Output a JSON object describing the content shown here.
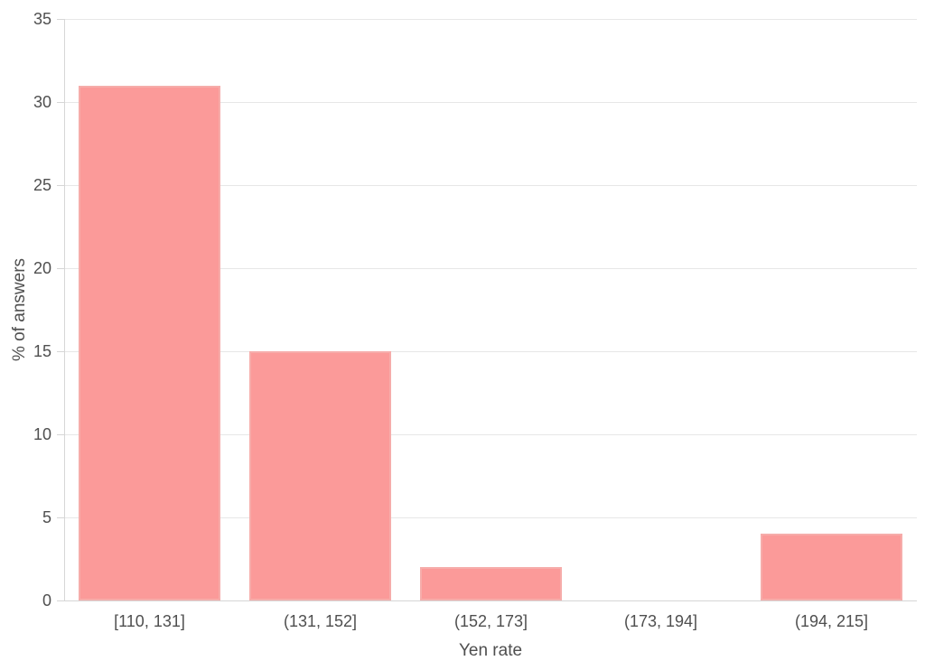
{
  "page": {
    "background": "#ffffff"
  },
  "chart_data": {
    "type": "bar",
    "title": "",
    "categories": [
      "[110, 131]",
      "(131, 152]",
      "(152, 173]",
      "(173, 194]",
      "(194, 215]"
    ],
    "values": [
      31,
      15,
      2,
      0,
      4
    ],
    "xlabel": "Yen rate",
    "ylabel": "% of answers",
    "ylim": [
      0,
      35
    ],
    "yticks": [
      0,
      5,
      10,
      15,
      20,
      25,
      30,
      35
    ],
    "grid": "horizontal-only",
    "legend": "none",
    "colors": {
      "bar_fill": "#fb9a99",
      "bar_border": "#f6acaa",
      "gridline": "#e7e7e7",
      "axis_line": "#d6d6d6",
      "text": "#4f4f4f"
    }
  }
}
